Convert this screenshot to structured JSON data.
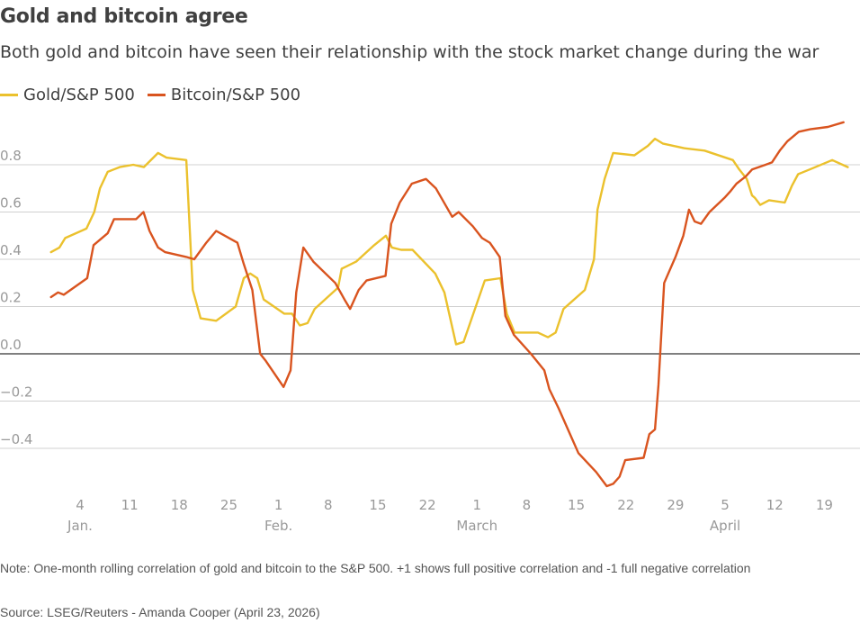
{
  "chart_data": {
    "type": "line",
    "title": "Gold and bitcoin agree",
    "subtitle": "Both gold and bitcoin have seen their relationship with the stock market change during the war",
    "xlabel": "",
    "ylabel": "",
    "ylim": [
      -0.57,
      0.97
    ],
    "grid": true,
    "legend_position": "top-left",
    "y_ticks": [
      {
        "value": 0.8,
        "label": "0.8"
      },
      {
        "value": 0.6,
        "label": "0.6"
      },
      {
        "value": 0.4,
        "label": "0.4"
      },
      {
        "value": 0.2,
        "label": "0.2"
      },
      {
        "value": 0.0,
        "label": "0.0"
      },
      {
        "value": -0.2,
        "label": "−0.2"
      },
      {
        "value": -0.4,
        "label": "−0.4"
      }
    ],
    "x_ticks": [
      {
        "day": 0,
        "label": "4",
        "month": "Jan."
      },
      {
        "day": 7,
        "label": "11"
      },
      {
        "day": 14,
        "label": "18"
      },
      {
        "day": 21,
        "label": "25"
      },
      {
        "day": 28,
        "label": "1",
        "month": "Feb."
      },
      {
        "day": 35,
        "label": "8"
      },
      {
        "day": 42,
        "label": "15"
      },
      {
        "day": 49,
        "label": "22"
      },
      {
        "day": 56,
        "label": "1",
        "month": "March"
      },
      {
        "day": 63,
        "label": "8"
      },
      {
        "day": 70,
        "label": "15"
      },
      {
        "day": 77,
        "label": "22"
      },
      {
        "day": 84,
        "label": "29"
      },
      {
        "day": 91,
        "label": "5",
        "month": "April"
      },
      {
        "day": 98,
        "label": "12"
      },
      {
        "day": 105,
        "label": "19"
      }
    ],
    "x_unit": "days since Jan 4, 2026",
    "series": [
      {
        "name": "Gold/S&P 500",
        "color": "#ebc12d",
        "points": [
          [
            -4.1,
            0.43
          ],
          [
            -2.9,
            0.45
          ],
          [
            -2.1,
            0.49
          ],
          [
            0.9,
            0.53
          ],
          [
            2.0,
            0.6
          ],
          [
            2.8,
            0.7
          ],
          [
            3.9,
            0.77
          ],
          [
            5.6,
            0.79
          ],
          [
            7.5,
            0.8
          ],
          [
            9.0,
            0.79
          ],
          [
            11.0,
            0.85
          ],
          [
            12.2,
            0.83
          ],
          [
            14.99,
            0.82
          ],
          [
            15.9,
            0.27
          ],
          [
            17.0,
            0.15
          ],
          [
            19.2,
            0.14
          ],
          [
            21.95,
            0.2
          ],
          [
            23.1,
            0.32
          ],
          [
            24.0,
            0.34
          ],
          [
            25.0,
            0.32
          ],
          [
            25.9,
            0.23
          ],
          [
            28.8,
            0.17
          ],
          [
            29.9,
            0.17
          ],
          [
            31.0,
            0.12
          ],
          [
            32.1,
            0.13
          ],
          [
            33.1,
            0.19
          ],
          [
            36.4,
            0.28
          ],
          [
            36.9,
            0.36
          ],
          [
            38.95,
            0.39
          ],
          [
            41.5,
            0.46
          ],
          [
            43.15,
            0.5
          ],
          [
            44.0,
            0.45
          ],
          [
            45.3,
            0.44
          ],
          [
            46.9,
            0.44
          ],
          [
            50.1,
            0.34
          ],
          [
            51.4,
            0.26
          ],
          [
            53.05,
            0.04
          ],
          [
            54.1,
            0.05
          ],
          [
            57.1,
            0.31
          ],
          [
            59.3,
            0.32
          ],
          [
            60.2,
            0.17
          ],
          [
            61.3,
            0.09
          ],
          [
            64.6,
            0.09
          ],
          [
            66.0,
            0.07
          ],
          [
            67.1,
            0.09
          ],
          [
            68.2,
            0.19
          ],
          [
            71.2,
            0.27
          ],
          [
            72.5,
            0.4
          ],
          [
            73.0,
            0.61
          ],
          [
            74.0,
            0.74
          ],
          [
            75.2,
            0.85
          ],
          [
            78.2,
            0.84
          ],
          [
            80.1,
            0.88
          ],
          [
            81.1,
            0.91
          ],
          [
            82.2,
            0.89
          ],
          [
            85.2,
            0.87
          ],
          [
            88.1,
            0.86
          ],
          [
            92.1,
            0.82
          ],
          [
            93.0,
            0.78
          ],
          [
            94.05,
            0.74
          ],
          [
            94.8,
            0.67
          ],
          [
            95.2,
            0.66
          ],
          [
            95.95,
            0.63
          ],
          [
            97.2,
            0.65
          ],
          [
            99.4,
            0.64
          ],
          [
            100.4,
            0.71
          ],
          [
            101.3,
            0.76
          ],
          [
            102.9,
            0.78
          ],
          [
            106.1,
            0.82
          ],
          [
            108.3,
            0.79
          ]
        ]
      },
      {
        "name": "Bitcoin/S&P 500",
        "color": "#d9541f",
        "points": [
          [
            -4.1,
            0.24
          ],
          [
            -3.1,
            0.26
          ],
          [
            -2.3,
            0.25
          ],
          [
            1.0,
            0.32
          ],
          [
            1.9,
            0.46
          ],
          [
            3.9,
            0.51
          ],
          [
            4.8,
            0.57
          ],
          [
            7.9,
            0.57
          ],
          [
            8.95,
            0.6
          ],
          [
            9.8,
            0.52
          ],
          [
            11.0,
            0.45
          ],
          [
            12.0,
            0.43
          ],
          [
            14.99,
            0.41
          ],
          [
            16.1,
            0.4
          ],
          [
            17.8,
            0.47
          ],
          [
            19.2,
            0.52
          ],
          [
            22.2,
            0.47
          ],
          [
            23.1,
            0.38
          ],
          [
            24.3,
            0.27
          ],
          [
            25.4,
            0.0
          ],
          [
            26.2,
            -0.03
          ],
          [
            28.7,
            -0.14
          ],
          [
            29.7,
            -0.07
          ],
          [
            30.5,
            0.26
          ],
          [
            31.5,
            0.45
          ],
          [
            32.9,
            0.39
          ],
          [
            36.0,
            0.3
          ],
          [
            37.3,
            0.23
          ],
          [
            38.1,
            0.19
          ],
          [
            39.3,
            0.27
          ],
          [
            40.4,
            0.31
          ],
          [
            43.1,
            0.33
          ],
          [
            43.9,
            0.55
          ],
          [
            45.1,
            0.64
          ],
          [
            46.8,
            0.72
          ],
          [
            48.8,
            0.74
          ],
          [
            50.2,
            0.7
          ],
          [
            52.5,
            0.58
          ],
          [
            53.4,
            0.6
          ],
          [
            55.4,
            0.54
          ],
          [
            56.7,
            0.49
          ],
          [
            57.8,
            0.47
          ],
          [
            59.2,
            0.41
          ],
          [
            60.0,
            0.16
          ],
          [
            61.2,
            0.08
          ],
          [
            63.6,
            0.0
          ],
          [
            65.5,
            -0.07
          ],
          [
            66.2,
            -0.15
          ],
          [
            67.5,
            -0.23
          ],
          [
            70.3,
            -0.42
          ],
          [
            72.8,
            -0.5
          ],
          [
            74.3,
            -0.56
          ],
          [
            75.2,
            -0.55
          ],
          [
            76.1,
            -0.52
          ],
          [
            76.9,
            -0.45
          ],
          [
            79.5,
            -0.44
          ],
          [
            80.3,
            -0.34
          ],
          [
            81.1,
            -0.32
          ],
          [
            81.6,
            -0.13
          ],
          [
            82.4,
            0.3
          ],
          [
            84.0,
            0.41
          ],
          [
            85.1,
            0.5
          ],
          [
            85.9,
            0.61
          ],
          [
            86.7,
            0.56
          ],
          [
            87.6,
            0.55
          ],
          [
            88.8,
            0.6
          ],
          [
            90.9,
            0.66
          ],
          [
            91.8,
            0.69
          ],
          [
            92.6,
            0.72
          ],
          [
            93.9,
            0.75
          ],
          [
            94.8,
            0.78
          ],
          [
            96.7,
            0.8
          ],
          [
            97.6,
            0.81
          ],
          [
            98.7,
            0.86
          ],
          [
            99.8,
            0.9
          ],
          [
            101.4,
            0.94
          ],
          [
            103.0,
            0.95
          ],
          [
            105.5,
            0.96
          ],
          [
            107.7,
            0.98
          ]
        ]
      }
    ]
  },
  "note": "Note: One-month rolling correlation of gold and bitcoin to the S&P 500. +1 shows full positive correlation and -1 full negative correlation",
  "source": "Source: LSEG/Reuters - Amanda Cooper (April 23, 2026)"
}
